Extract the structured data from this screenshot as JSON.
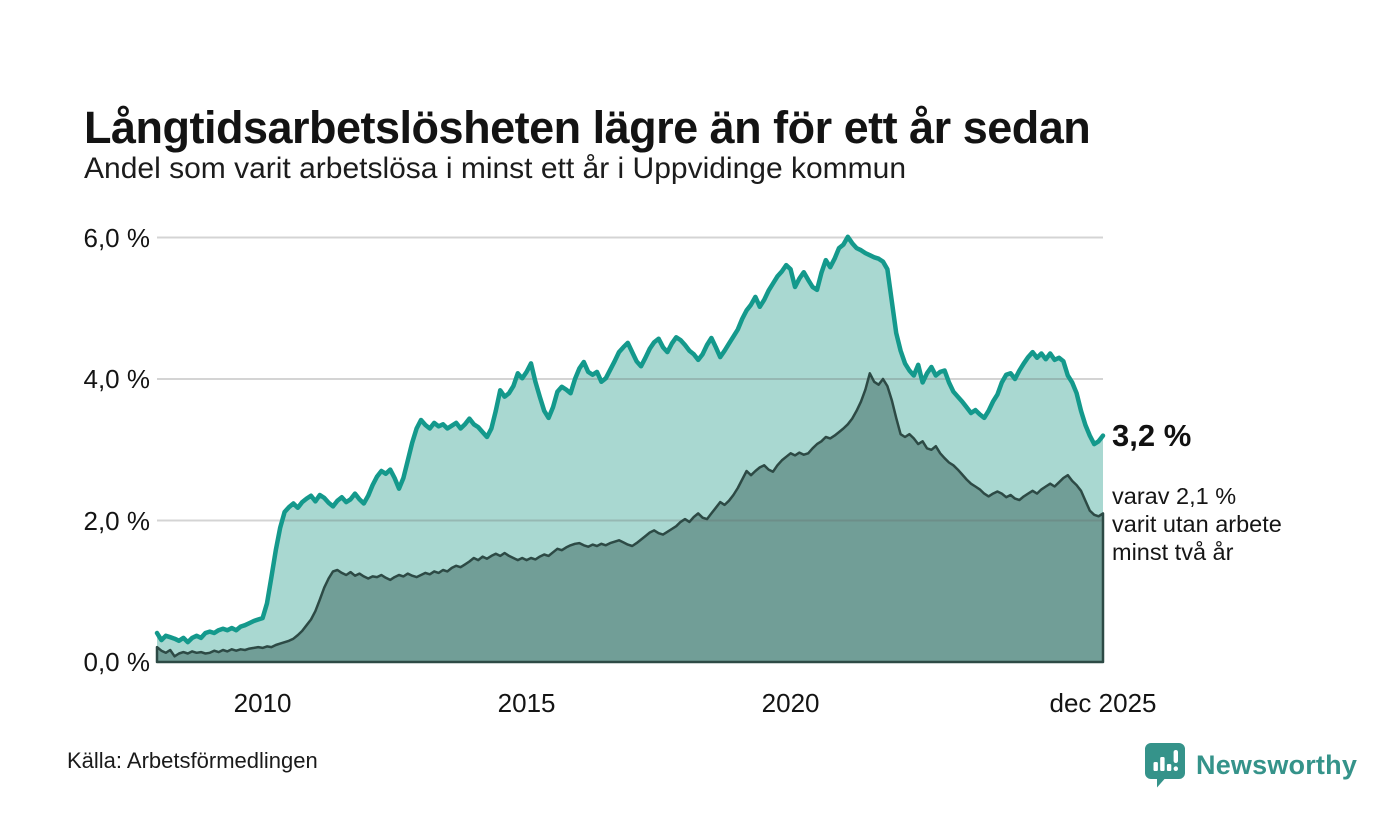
{
  "chart_data": {
    "type": "area",
    "title": "Långtidsarbetslösheten lägre än för ett år sedan",
    "subtitle": "Andel som varit arbetslösa i minst ett år i Uppvidinge kommun",
    "sampling": "monthly",
    "grid": true,
    "legend": "none",
    "x_axis": {
      "start": "jan 2008",
      "end": "dec 2025",
      "ticks": [
        {
          "year": 2010,
          "label": "2010"
        },
        {
          "year": 2015,
          "label": "2015"
        },
        {
          "year": 2020,
          "label": "2020"
        },
        {
          "year": 2025.9167,
          "label": "dec 2025"
        }
      ]
    },
    "y_axis": {
      "unit": "%",
      "min": 0,
      "max": 6,
      "ticks": [
        {
          "value": 0,
          "label": "0,0 %"
        },
        {
          "value": 2,
          "label": "2,0 %"
        },
        {
          "value": 4,
          "label": "4,0 %"
        },
        {
          "value": 6,
          "label": "6,0 %"
        }
      ]
    },
    "series": [
      {
        "name": "Arbetslösa minst ett år",
        "line_color": "#14998c",
        "fill_color": "#a9d8d1",
        "end_value": 3.2,
        "values": [
          0.41,
          0.31,
          0.37,
          0.35,
          0.33,
          0.3,
          0.34,
          0.28,
          0.34,
          0.37,
          0.34,
          0.41,
          0.43,
          0.41,
          0.45,
          0.47,
          0.45,
          0.48,
          0.45,
          0.5,
          0.52,
          0.55,
          0.58,
          0.6,
          0.62,
          0.83,
          1.2,
          1.58,
          1.9,
          2.12,
          2.19,
          2.24,
          2.18,
          2.26,
          2.31,
          2.35,
          2.27,
          2.36,
          2.32,
          2.25,
          2.2,
          2.28,
          2.33,
          2.26,
          2.3,
          2.38,
          2.3,
          2.24,
          2.35,
          2.5,
          2.62,
          2.7,
          2.66,
          2.72,
          2.6,
          2.45,
          2.6,
          2.85,
          3.1,
          3.3,
          3.42,
          3.35,
          3.3,
          3.38,
          3.33,
          3.36,
          3.3,
          3.34,
          3.38,
          3.3,
          3.36,
          3.44,
          3.36,
          3.32,
          3.25,
          3.18,
          3.3,
          3.55,
          3.84,
          3.75,
          3.8,
          3.9,
          4.08,
          4.01,
          4.1,
          4.22,
          3.96,
          3.75,
          3.55,
          3.45,
          3.6,
          3.82,
          3.89,
          3.85,
          3.8,
          4.0,
          4.15,
          4.24,
          4.1,
          4.06,
          4.1,
          3.96,
          4.01,
          4.13,
          4.25,
          4.38,
          4.45,
          4.51,
          4.38,
          4.25,
          4.18,
          4.3,
          4.43,
          4.52,
          4.57,
          4.45,
          4.38,
          4.5,
          4.59,
          4.55,
          4.48,
          4.4,
          4.35,
          4.27,
          4.35,
          4.48,
          4.58,
          4.45,
          4.31,
          4.4,
          4.5,
          4.6,
          4.7,
          4.85,
          4.97,
          5.05,
          5.16,
          5.02,
          5.12,
          5.25,
          5.35,
          5.45,
          5.52,
          5.61,
          5.55,
          5.3,
          5.42,
          5.51,
          5.4,
          5.3,
          5.26,
          5.5,
          5.68,
          5.58,
          5.7,
          5.85,
          5.9,
          6.01,
          5.92,
          5.85,
          5.82,
          5.78,
          5.75,
          5.72,
          5.7,
          5.66,
          5.55,
          5.1,
          4.65,
          4.4,
          4.22,
          4.12,
          4.05,
          4.2,
          3.95,
          4.08,
          4.17,
          4.05,
          4.1,
          4.12,
          3.95,
          3.82,
          3.75,
          3.68,
          3.6,
          3.52,
          3.56,
          3.5,
          3.45,
          3.55,
          3.68,
          3.78,
          3.95,
          4.06,
          4.08,
          4.0,
          4.12,
          4.22,
          4.31,
          4.38,
          4.3,
          4.36,
          4.28,
          4.36,
          4.27,
          4.3,
          4.25,
          4.05,
          3.95,
          3.8,
          3.55,
          3.35,
          3.2,
          3.08,
          3.12,
          3.2
        ]
      },
      {
        "name": "Arbetslösa minst två år",
        "line_color": "#2d4a45",
        "fill_color": "#719e97",
        "end_value": 2.1,
        "values": [
          0.21,
          0.16,
          0.13,
          0.17,
          0.08,
          0.12,
          0.14,
          0.12,
          0.15,
          0.13,
          0.14,
          0.12,
          0.13,
          0.16,
          0.14,
          0.17,
          0.15,
          0.18,
          0.16,
          0.18,
          0.17,
          0.19,
          0.2,
          0.21,
          0.2,
          0.22,
          0.21,
          0.24,
          0.26,
          0.28,
          0.3,
          0.33,
          0.38,
          0.44,
          0.52,
          0.6,
          0.72,
          0.88,
          1.05,
          1.18,
          1.28,
          1.3,
          1.26,
          1.23,
          1.27,
          1.22,
          1.25,
          1.21,
          1.18,
          1.21,
          1.2,
          1.23,
          1.19,
          1.16,
          1.2,
          1.23,
          1.21,
          1.25,
          1.22,
          1.2,
          1.23,
          1.26,
          1.24,
          1.28,
          1.26,
          1.3,
          1.28,
          1.33,
          1.36,
          1.34,
          1.38,
          1.42,
          1.47,
          1.44,
          1.49,
          1.46,
          1.5,
          1.53,
          1.5,
          1.54,
          1.5,
          1.47,
          1.44,
          1.47,
          1.44,
          1.47,
          1.45,
          1.49,
          1.52,
          1.5,
          1.55,
          1.6,
          1.58,
          1.62,
          1.65,
          1.67,
          1.68,
          1.65,
          1.63,
          1.66,
          1.64,
          1.67,
          1.65,
          1.68,
          1.7,
          1.72,
          1.69,
          1.66,
          1.64,
          1.68,
          1.73,
          1.78,
          1.83,
          1.86,
          1.82,
          1.8,
          1.84,
          1.88,
          1.92,
          1.98,
          2.02,
          1.98,
          2.05,
          2.1,
          2.04,
          2.02,
          2.1,
          2.18,
          2.26,
          2.22,
          2.28,
          2.36,
          2.46,
          2.58,
          2.7,
          2.64,
          2.7,
          2.75,
          2.78,
          2.72,
          2.69,
          2.78,
          2.85,
          2.9,
          2.95,
          2.92,
          2.96,
          2.93,
          2.95,
          3.02,
          3.08,
          3.12,
          3.18,
          3.16,
          3.2,
          3.25,
          3.3,
          3.36,
          3.44,
          3.55,
          3.68,
          3.85,
          4.08,
          3.96,
          3.92,
          4.0,
          3.9,
          3.7,
          3.45,
          3.22,
          3.18,
          3.22,
          3.16,
          3.08,
          3.12,
          3.02,
          3.0,
          3.05,
          2.95,
          2.88,
          2.82,
          2.78,
          2.72,
          2.65,
          2.58,
          2.52,
          2.48,
          2.44,
          2.38,
          2.34,
          2.38,
          2.41,
          2.38,
          2.33,
          2.36,
          2.31,
          2.29,
          2.34,
          2.38,
          2.42,
          2.38,
          2.44,
          2.48,
          2.52,
          2.48,
          2.54,
          2.6,
          2.64,
          2.56,
          2.5,
          2.42,
          2.28,
          2.14,
          2.08,
          2.06,
          2.1
        ]
      }
    ],
    "annotation": {
      "headline": "3,2 %",
      "lines": [
        "varav 2,1 %",
        "varit utan arbete",
        "minst två år"
      ]
    }
  },
  "footer": {
    "source": "Källa: Arbetsförmedlingen",
    "brand": {
      "name": "Newsworthy",
      "color": "#35938a"
    }
  }
}
